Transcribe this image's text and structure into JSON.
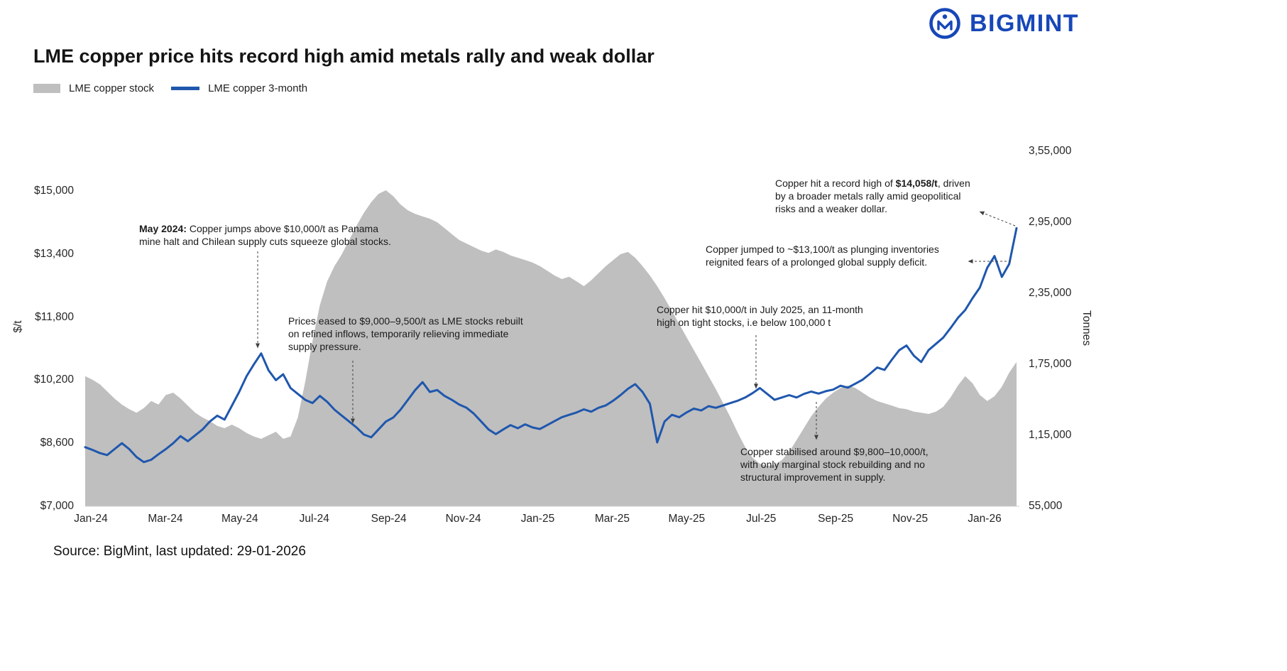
{
  "logo": {
    "text": "BIGMINT",
    "color": "#1747b8"
  },
  "header": {
    "title": "LME copper price hits record high amid metals rally and weak dollar"
  },
  "legend": [
    {
      "label": "LME copper stock",
      "type": "area",
      "color": "#bfbfbf"
    },
    {
      "label": "LME copper 3-month",
      "type": "line",
      "color": "#1f57ad"
    }
  ],
  "source": "Source: BigMint, last updated: 29-01-2026",
  "chart_data": {
    "type": "line",
    "title": "LME copper price hits record high amid metals rally and weak dollar",
    "x_ticks": [
      "Jan-24",
      "Mar-24",
      "May-24",
      "Jul-24",
      "Sep-24",
      "Nov-24",
      "Jan-25",
      "Mar-25",
      "May-25",
      "Jul-25",
      "Sep-25",
      "Nov-25",
      "Jan-26"
    ],
    "left_axis": {
      "title": "$/t",
      "min": 7000,
      "max": 15000,
      "tick_values": [
        7000,
        8600,
        10200,
        11800,
        13400,
        15000
      ],
      "tick_labels": [
        "$7,000",
        "$8,600",
        "$10,200",
        "$11,800",
        "$13,400",
        "$15,000"
      ]
    },
    "right_axis": {
      "title": "Tonnes",
      "min": 55000,
      "max": 355000,
      "tick_values": [
        55000,
        115000,
        175000,
        235000,
        295000,
        355000
      ],
      "tick_labels": [
        "55,000",
        "1,15,000",
        "1,75,000",
        "2,35,000",
        "2,95,000",
        "3,55,000"
      ]
    },
    "series": [
      {
        "name": "LME copper stock",
        "type": "area",
        "axis": "right",
        "color": "#bfbfbf",
        "unit": "tonnes",
        "values": [
          165000,
          162000,
          158000,
          152000,
          146000,
          141000,
          137000,
          134000,
          138000,
          144000,
          141000,
          149000,
          151000,
          146000,
          140000,
          134000,
          130000,
          127000,
          123000,
          121000,
          124000,
          121000,
          117000,
          114000,
          112000,
          115000,
          118000,
          112000,
          114000,
          130000,
          160000,
          195000,
          225000,
          245000,
          258000,
          268000,
          280000,
          292000,
          303000,
          312000,
          319000,
          322000,
          317000,
          310000,
          305000,
          302000,
          300000,
          298000,
          295000,
          290000,
          285000,
          280000,
          277000,
          274000,
          271000,
          269000,
          272000,
          270000,
          267000,
          265000,
          263000,
          261000,
          258000,
          254000,
          250000,
          247000,
          249000,
          245000,
          241000,
          246000,
          252000,
          258000,
          263000,
          268000,
          270000,
          265000,
          258000,
          250000,
          241000,
          231000,
          220000,
          209000,
          198000,
          187000,
          176000,
          165000,
          154000,
          142000,
          130000,
          117000,
          105000,
          96000,
          91000,
          89000,
          90000,
          94000,
          101000,
          111000,
          121000,
          131000,
          139000,
          146000,
          151000,
          155000,
          157000,
          155000,
          151000,
          147000,
          144000,
          142000,
          140000,
          138000,
          137000,
          135000,
          134000,
          133000,
          135000,
          139000,
          147000,
          157000,
          165000,
          159000,
          149000,
          144000,
          148000,
          156000,
          168000,
          177000
        ]
      },
      {
        "name": "LME copper 3-month",
        "type": "line",
        "axis": "left",
        "color": "#1f57ad",
        "unit": "$/t",
        "values": [
          8500,
          8430,
          8350,
          8300,
          8450,
          8600,
          8450,
          8250,
          8120,
          8180,
          8320,
          8450,
          8600,
          8780,
          8650,
          8800,
          8950,
          9150,
          9300,
          9200,
          9550,
          9900,
          10300,
          10600,
          10880,
          10450,
          10200,
          10350,
          10000,
          9850,
          9700,
          9620,
          9800,
          9650,
          9450,
          9300,
          9150,
          9000,
          8820,
          8750,
          8950,
          9150,
          9250,
          9450,
          9700,
          9950,
          10150,
          9900,
          9950,
          9800,
          9700,
          9580,
          9500,
          9350,
          9150,
          8950,
          8830,
          8950,
          9060,
          8980,
          9080,
          9000,
          8960,
          9060,
          9160,
          9260,
          9320,
          9380,
          9460,
          9400,
          9500,
          9560,
          9680,
          9820,
          9980,
          10100,
          9900,
          9600,
          8620,
          9150,
          9320,
          9260,
          9380,
          9480,
          9430,
          9540,
          9500,
          9560,
          9620,
          9680,
          9760,
          9870,
          10000,
          9850,
          9700,
          9760,
          9820,
          9760,
          9850,
          9910,
          9860,
          9920,
          9960,
          10060,
          10010,
          10110,
          10210,
          10360,
          10520,
          10460,
          10720,
          10960,
          11080,
          10820,
          10660,
          10960,
          11120,
          11280,
          11520,
          11780,
          11980,
          12280,
          12550,
          13050,
          13350,
          12820,
          13150,
          14058
        ]
      }
    ],
    "annotations": [
      {
        "id": "ann1",
        "segments": [
          {
            "text": "May 2024:",
            "bold": true
          },
          {
            "text": " Copper jumps above $10,000/t as Panama\nmine halt and Chilean supply cuts squeeze global stocks."
          }
        ]
      },
      {
        "id": "ann2",
        "segments": [
          {
            "text": "Prices eased to $9,000–9,500/t as LME stocks rebuilt\non refined inflows, temporarily relieving immediate\nsupply pressure."
          }
        ]
      },
      {
        "id": "ann3",
        "segments": [
          {
            "text": "Copper hit $10,000/t in July 2025, an 11-month\nhigh on tight stocks, i.e below 100,000 t"
          }
        ]
      },
      {
        "id": "ann4",
        "segments": [
          {
            "text": "Copper stabilised around $9,800–10,000/t,\nwith only marginal stock rebuilding and no\nstructural improvement in supply."
          }
        ]
      },
      {
        "id": "ann5",
        "segments": [
          {
            "text": "Copper jumped to ~$13,100/t as plunging inventories\nreignited fears of a prolonged global supply deficit."
          }
        ]
      },
      {
        "id": "ann6",
        "segments": [
          {
            "text": "Copper hit a record high of "
          },
          {
            "text": "$14,058/t",
            "bold": true
          },
          {
            "text": ", driven\nby a broader metals rally amid geopolitical\nrisks and a weaker dollar."
          }
        ]
      }
    ]
  }
}
